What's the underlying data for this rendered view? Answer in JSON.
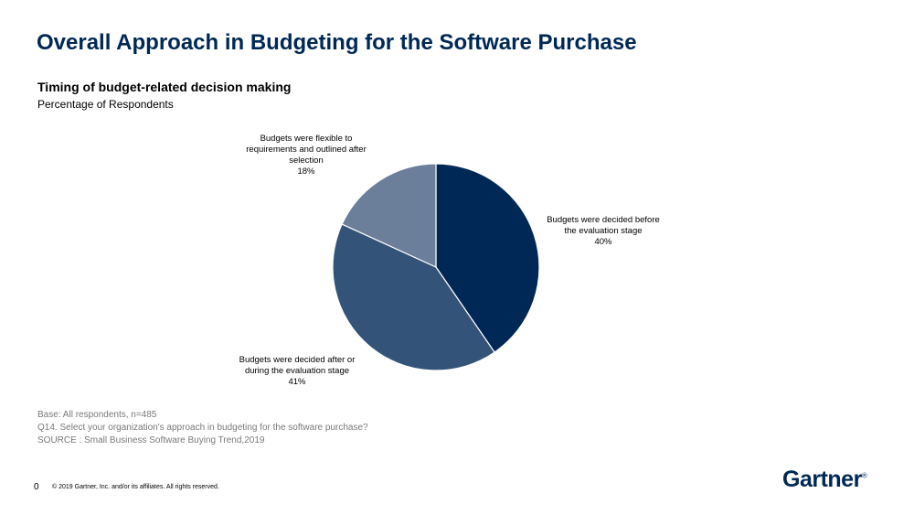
{
  "header": {
    "title": "Overall Approach in Budgeting for the Software Purchase",
    "subtitle": "Timing of budget-related decision making",
    "subsubtitle": "Percentage of Respondents"
  },
  "chart_data": {
    "type": "pie",
    "title": "Timing of budget-related decision making",
    "subtitle": "Percentage of Respondents",
    "slices": [
      {
        "label": "Budgets were decided before the evaluation stage",
        "value": 40,
        "value_text": "40%",
        "color": "#002856"
      },
      {
        "label": "Budgets were decided after or during the evaluation stage",
        "value": 41,
        "value_text": "41%",
        "color": "#335478"
      },
      {
        "label": "Budgets were flexible to requirements and outlined after selection",
        "value": 18,
        "value_text": "18%",
        "color": "#6b7e9a"
      }
    ],
    "label_lines": [
      [
        "Budgets were decided before",
        "the evaluation stage",
        "40%"
      ],
      [
        "Budgets were decided after or",
        "during the evaluation stage",
        "41%"
      ],
      [
        "Budgets were flexible to",
        "requirements and outlined after",
        "selection",
        "18%"
      ]
    ]
  },
  "footer": {
    "base": "Base: All respondents, n=485",
    "question": "Q14. Select your organization's approach in budgeting for the software purchase?",
    "source": "SOURCE : Small Business Software Buying Trend,2019",
    "page_number": "0",
    "copyright": "© 2019 Gartner, Inc. and/or its affiliates. All rights reserved.",
    "logo_text": "Gartner",
    "logo_mark": "®"
  }
}
